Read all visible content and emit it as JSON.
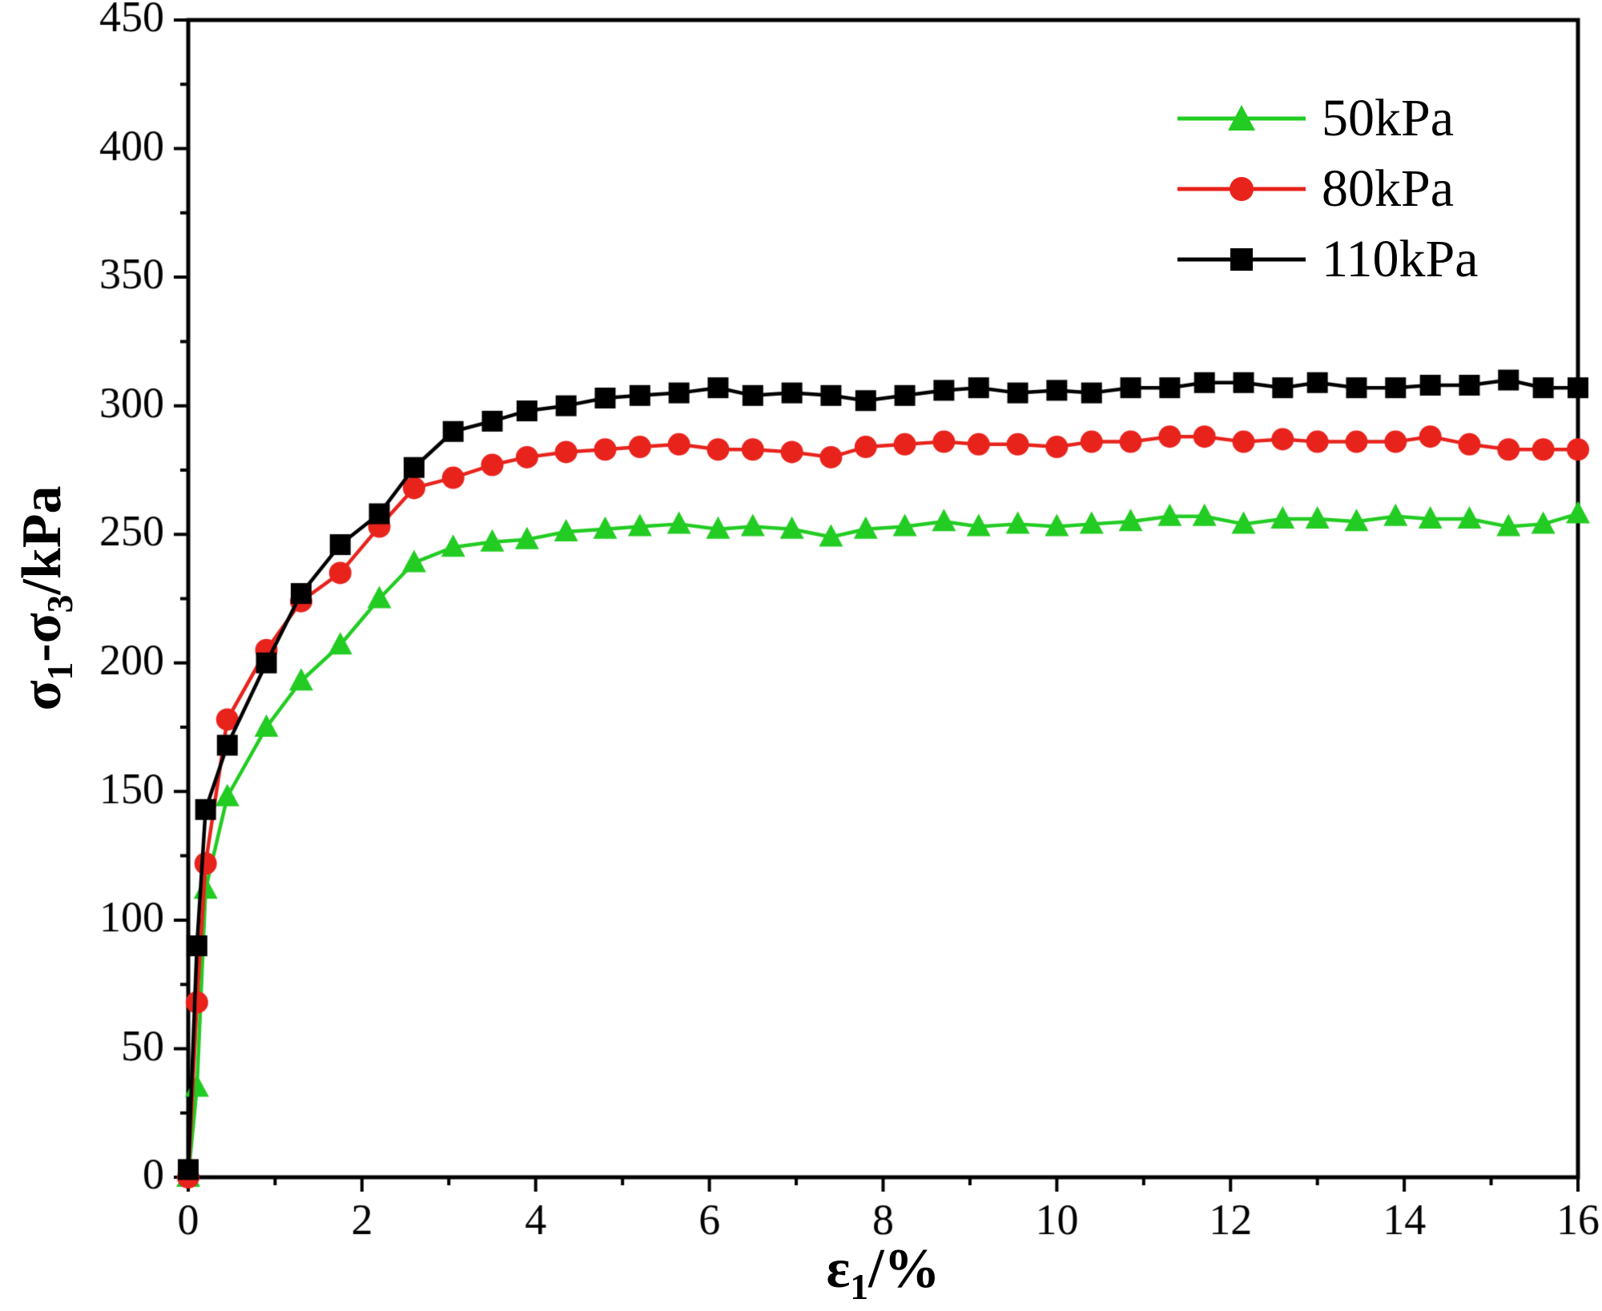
{
  "figure": {
    "background": "#ffffff",
    "frame_color": "#000000"
  },
  "axes": {
    "xlabel": {
      "base": "ε",
      "sub": "1",
      "suffix": "/%"
    },
    "ylabel": {
      "p1": "σ",
      "sub1": "1",
      "p2": "-σ",
      "sub2": "3",
      "p3": "/kPa"
    }
  },
  "chart_data": {
    "type": "line",
    "title": "",
    "xlabel": "ε1/%",
    "ylabel": "σ1-σ3/kPa",
    "xlim": [
      0,
      16
    ],
    "ylim": [
      0,
      450
    ],
    "xticks": [
      0,
      2,
      4,
      6,
      8,
      10,
      12,
      14,
      16
    ],
    "xminorticks": [
      1,
      3,
      5,
      7,
      9,
      11,
      13,
      15
    ],
    "yticks": [
      0,
      50,
      100,
      150,
      200,
      250,
      300,
      350,
      400,
      450
    ],
    "yminorticks": [
      25,
      75,
      125,
      175,
      225,
      275,
      325,
      375,
      425
    ],
    "grid": false,
    "legend_position": "top-right",
    "x": [
      0,
      0.1,
      0.2,
      0.45,
      0.9,
      1.3,
      1.75,
      2.2,
      2.6,
      3.05,
      3.5,
      3.9,
      4.35,
      4.8,
      5.2,
      5.65,
      6.1,
      6.5,
      6.95,
      7.4,
      7.8,
      8.25,
      8.7,
      9.1,
      9.55,
      10,
      10.4,
      10.85,
      11.3,
      11.7,
      12.15,
      12.6,
      13,
      13.45,
      13.9,
      14.3,
      14.75,
      15.2,
      15.6,
      16
    ],
    "series": [
      {
        "name": "50kPa",
        "color": "#22cc22",
        "marker": "triangle",
        "values": [
          0,
          35,
          112,
          148,
          175,
          193,
          207,
          225,
          239,
          245,
          247,
          248,
          251,
          252,
          253,
          254,
          252,
          253,
          252,
          249,
          252,
          253,
          255,
          253,
          254,
          253,
          254,
          255,
          257,
          257,
          254,
          256,
          256,
          255,
          257,
          256,
          256,
          253,
          254,
          258
        ]
      },
      {
        "name": "80kPa",
        "color": "#e8231c",
        "marker": "circle",
        "values": [
          0,
          68,
          122,
          178,
          205,
          224,
          235,
          253,
          268,
          272,
          277,
          280,
          282,
          283,
          284,
          285,
          283,
          283,
          282,
          280,
          284,
          285,
          286,
          285,
          285,
          284,
          286,
          286,
          288,
          288,
          286,
          287,
          286,
          286,
          286,
          288,
          285,
          283,
          283,
          283
        ]
      },
      {
        "name": "110kPa",
        "color": "#000000",
        "marker": "square",
        "values": [
          3,
          90,
          143,
          168,
          200,
          227,
          246,
          258,
          276,
          290,
          294,
          298,
          300,
          303,
          304,
          305,
          307,
          304,
          305,
          304,
          302,
          304,
          306,
          307,
          305,
          306,
          305,
          307,
          307,
          309,
          309,
          307,
          309,
          307,
          307,
          308,
          308,
          310,
          307,
          307
        ]
      }
    ]
  }
}
